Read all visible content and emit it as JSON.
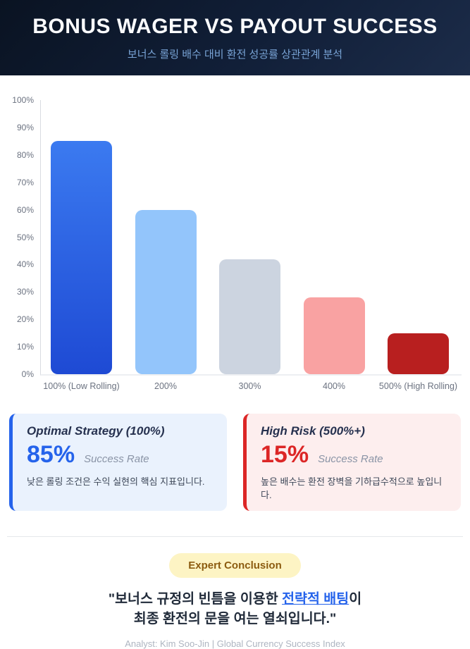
{
  "header": {
    "title": "BONUS WAGER VS PAYOUT SUCCESS",
    "subtitle": "보너스 롤링 배수 대비 환전 성공률 상관관계 분석"
  },
  "chart_data": {
    "type": "bar",
    "title": "",
    "categories": [
      "100% (Low Rolling)",
      "200%",
      "300%",
      "400%",
      "500% (High Rolling)"
    ],
    "values": [
      85,
      60,
      42,
      28,
      15
    ],
    "unit": "%",
    "xlabel": "",
    "ylabel": "",
    "ylim": [
      0,
      100
    ],
    "ytick_step": 10,
    "grid": false,
    "legend": false,
    "bar_colors": [
      "linear-gradient(180deg, #3b7af0 0%, #1e4ad4 100%)",
      "#93c5fb",
      "#ccd4e0",
      "#f9a2a2",
      "#b81f1f"
    ]
  },
  "cards": [
    {
      "title": "Optimal Strategy (100%)",
      "value": "85%",
      "value_label": "Success Rate",
      "description": "낮은 롤링 조건은 수익 실현의 핵심 지표입니다.",
      "accent_color": "#2563eb",
      "background_color": "#eaf2fd"
    },
    {
      "title": "High Risk (500%+)",
      "value": "15%",
      "value_label": "Success Rate",
      "description": "높은 배수는 환전 장벽을 기하급수적으로 높입니다.",
      "accent_color": "#dc2626",
      "background_color": "#fdeeee"
    }
  ],
  "conclusion": {
    "badge_label": "Expert Conclusion",
    "quote_prefix": "\"보너스 규정의 빈틈을 이용한 ",
    "quote_link": "전략적 배팅",
    "quote_suffix": "이",
    "quote_line2": "최종 환전의 문을 여는 열쇠입니다.\"",
    "credit": "Analyst: Kim Soo-Jin | Global Currency Success Index"
  }
}
